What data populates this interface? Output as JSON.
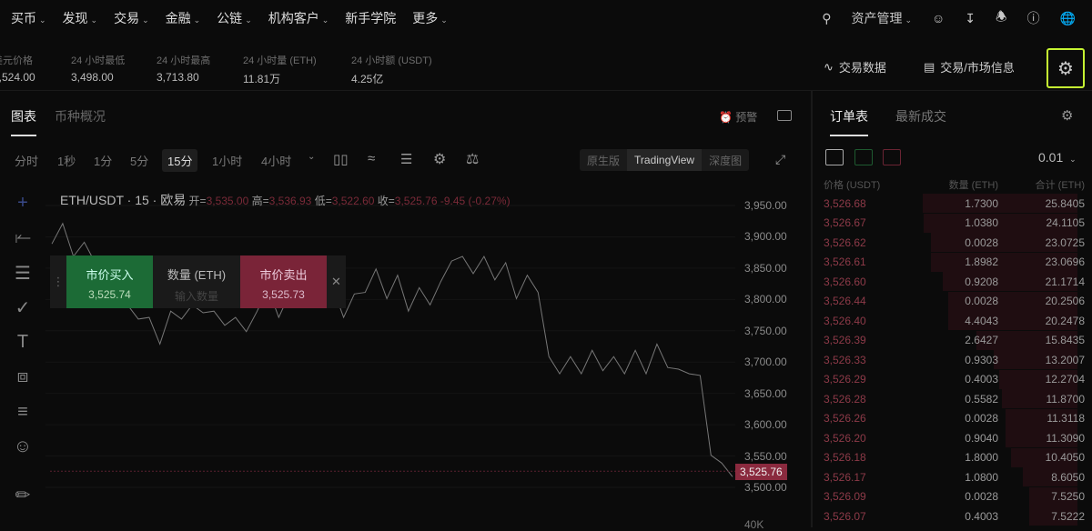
{
  "nav": {
    "items": [
      {
        "label": "买币",
        "chevron": true
      },
      {
        "label": "发现",
        "chevron": true
      },
      {
        "label": "交易",
        "chevron": true
      },
      {
        "label": "金融",
        "chevron": true
      },
      {
        "label": "公链",
        "chevron": true
      },
      {
        "label": "机构客户",
        "chevron": true
      },
      {
        "label": "新手学院",
        "chevron": false
      },
      {
        "label": "更多",
        "chevron": true
      }
    ],
    "assets_label": "资产管理"
  },
  "stats": [
    {
      "label": "美元价格",
      "value": "3,524.00"
    },
    {
      "label": "24 小时最低",
      "value": "3,498.00"
    },
    {
      "label": "24 小时最高",
      "value": "3,713.80"
    },
    {
      "label": "24 小时量 (ETH)",
      "value": "11.81万"
    },
    {
      "label": "24 小时额 (USDT)",
      "value": "4.25亿"
    }
  ],
  "toolbar": {
    "trade_data": "交易数据",
    "market_info": "交易/市场信息"
  },
  "chart_tabs": {
    "chart": "图表",
    "overview": "币种概况",
    "alert": "预警"
  },
  "intervals": [
    "分时",
    "1秒",
    "1分",
    "5分",
    "15分",
    "1小时",
    "4小时"
  ],
  "active_interval": "15分",
  "views": [
    "原生版",
    "TradingView",
    "深度图"
  ],
  "active_view": "TradingView",
  "legend": {
    "symbol": "ETH/USDT · 15 · 欧易",
    "o_label": "开=",
    "o": "3,535.00",
    "h_label": "高=",
    "h": "3,536.93",
    "l_label": "低=",
    "l": "3,522.60",
    "c_label": "收=",
    "c": "3,525.76",
    "chg": "-9.45 (-0.27%)"
  },
  "quick_trade": {
    "buy_label": "市价买入",
    "buy_price": "3,525.74",
    "qty_label": "数量 (ETH)",
    "qty_placeholder": "输入数量",
    "sell_label": "市价卖出",
    "sell_price": "3,525.73"
  },
  "y_axis": [
    "3,950.00",
    "3,900.00",
    "3,850.00",
    "3,800.00",
    "3,750.00",
    "3,700.00",
    "3,650.00",
    "3,600.00",
    "3,550.00",
    "3,500.00"
  ],
  "last_price": "3,525.76",
  "bottom_label": "40K",
  "price_path": [
    3880,
    3930,
    3860,
    3900,
    3850,
    3870,
    3790,
    3800,
    3760,
    3780,
    3720,
    3790,
    3760,
    3800,
    3770,
    3790,
    3750,
    3780,
    3740,
    3790,
    3810,
    3780,
    3800,
    3830,
    3790,
    3820,
    3810,
    3780,
    3800,
    3820,
    3840,
    3810,
    3830,
    3790,
    3810,
    3800,
    3820,
    3870,
    3860,
    3850,
    3860,
    3840,
    3850,
    3810,
    3830,
    3820,
    3700,
    3690,
    3700,
    3690,
    3710,
    3695,
    3700,
    3690,
    3710,
    3690,
    3720,
    3700,
    3680,
    3690,
    3670,
    3560,
    3530,
    3525.76
  ],
  "colors": {
    "up": "#1e7a3c",
    "down": "#8a2a3e",
    "accent": "#c6f432"
  },
  "orderbook": {
    "tab_book": "订单表",
    "tab_trades": "最新成交",
    "tick": "0.01",
    "headers": [
      "价格 (USDT)",
      "数量 (ETH)",
      "合计 (ETH)"
    ],
    "rows": [
      [
        "3,526.68",
        "1.7300",
        "25.8405"
      ],
      [
        "3,526.67",
        "1.0380",
        "24.1105"
      ],
      [
        "3,526.62",
        "0.0028",
        "23.0725"
      ],
      [
        "3,526.61",
        "1.8982",
        "23.0696"
      ],
      [
        "3,526.60",
        "0.9208",
        "21.1714"
      ],
      [
        "3,526.44",
        "0.0028",
        "20.2506"
      ],
      [
        "3,526.40",
        "4.4043",
        "20.2478"
      ],
      [
        "3,526.39",
        "2.6427",
        "15.8435"
      ],
      [
        "3,526.33",
        "0.9303",
        "13.2007"
      ],
      [
        "3,526.29",
        "0.4003",
        "12.2704"
      ],
      [
        "3,526.28",
        "0.5582",
        "11.8700"
      ],
      [
        "3,526.26",
        "0.0028",
        "11.3118"
      ],
      [
        "3,526.20",
        "0.9040",
        "11.3090"
      ],
      [
        "3,526.18",
        "1.8000",
        "10.4050"
      ],
      [
        "3,526.17",
        "1.0800",
        "8.6050"
      ],
      [
        "3,526.09",
        "0.0028",
        "7.5250"
      ],
      [
        "3,526.07",
        "0.4003",
        "7.5222"
      ]
    ]
  }
}
